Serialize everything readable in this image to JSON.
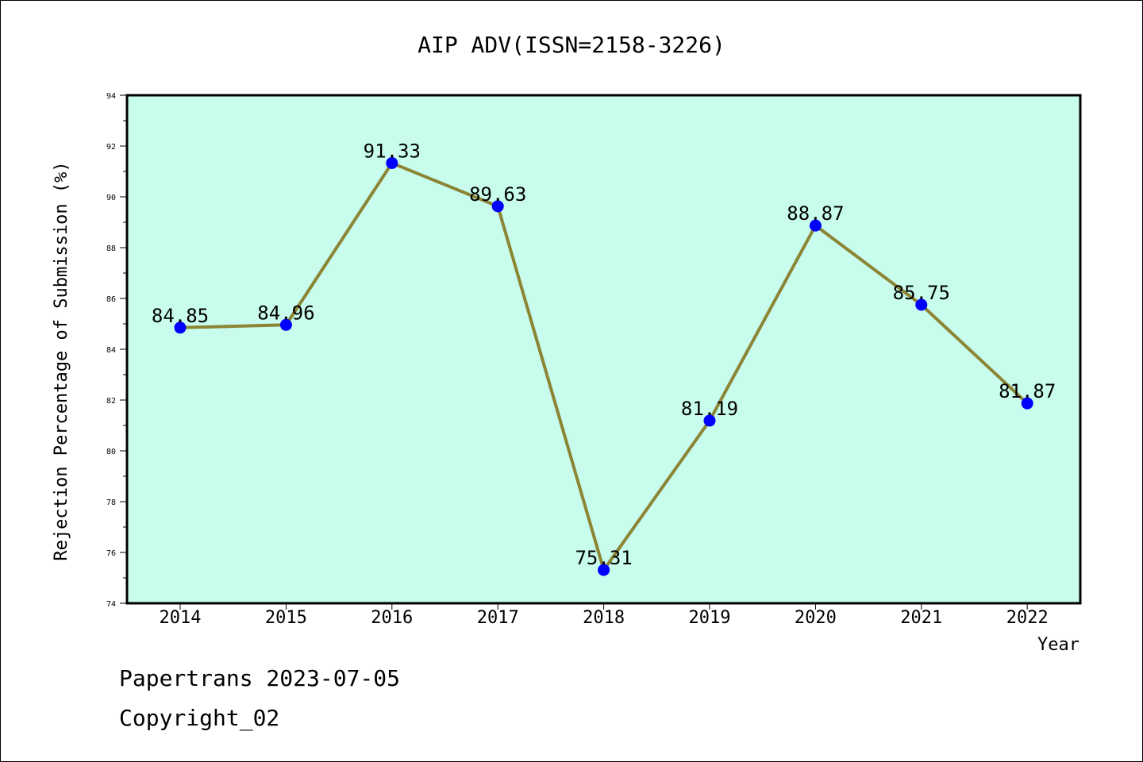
{
  "chart_data": {
    "type": "line",
    "title": "AIP ADV(ISSN=2158-3226)",
    "xlabel": "Year",
    "ylabel": "Rejection Percentage of Submission (%)",
    "categories": [
      "2014",
      "2015",
      "2016",
      "2017",
      "2018",
      "2019",
      "2020",
      "2021",
      "2022"
    ],
    "values": [
      84.85,
      84.96,
      91.33,
      89.63,
      75.31,
      81.19,
      88.87,
      85.75,
      81.87
    ],
    "data_labels": [
      "84.85",
      "84.96",
      "91.33",
      "89.63",
      "75.31",
      "81.19",
      "88.87",
      "85.75",
      "81.87"
    ],
    "ylim": [
      74,
      94
    ],
    "yticks": [
      "74",
      "76",
      "78",
      "80",
      "82",
      "84",
      "86",
      "88",
      "90",
      "92",
      "94"
    ],
    "grid": false,
    "legend": "none",
    "colors": {
      "plot_background": "#c8fced",
      "line": "#8b8535",
      "marker": "#0000ff"
    }
  },
  "footer": {
    "line1": "Papertrans 2023-07-05",
    "line2": "Copyright_02"
  }
}
